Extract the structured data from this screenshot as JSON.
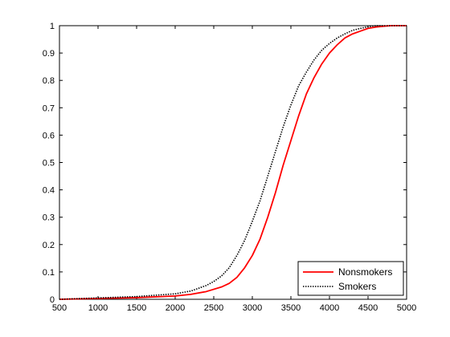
{
  "chart_data": {
    "type": "line",
    "title": "",
    "xlabel": "",
    "ylabel": "",
    "xlim": [
      500,
      5000
    ],
    "ylim": [
      0,
      1
    ],
    "x_ticks": [
      500,
      1000,
      1500,
      2000,
      2500,
      3000,
      3500,
      4000,
      4500,
      5000
    ],
    "y_ticks": [
      0,
      0.1,
      0.2,
      0.3,
      0.4,
      0.5,
      0.6,
      0.7,
      0.8,
      0.9,
      1
    ],
    "grid": false,
    "legend_position": "bottom-right",
    "series": [
      {
        "name": "Nonsmokers",
        "color": "#ff0000",
        "style": "solid",
        "x": [
          500,
          1000,
          1500,
          2000,
          2200,
          2400,
          2600,
          2700,
          2800,
          2900,
          3000,
          3100,
          3200,
          3300,
          3400,
          3500,
          3600,
          3700,
          3800,
          3900,
          4000,
          4100,
          4200,
          4300,
          4400,
          4500,
          4600,
          4700,
          4800,
          4900,
          5000
        ],
        "y": [
          0.0,
          0.003,
          0.006,
          0.012,
          0.018,
          0.028,
          0.045,
          0.058,
          0.08,
          0.115,
          0.16,
          0.22,
          0.3,
          0.39,
          0.49,
          0.58,
          0.67,
          0.75,
          0.81,
          0.86,
          0.9,
          0.93,
          0.955,
          0.97,
          0.98,
          0.99,
          0.995,
          0.998,
          1.0,
          1.0,
          1.0
        ]
      },
      {
        "name": "Smokers",
        "color": "#000000",
        "style": "dotted",
        "x": [
          500,
          1000,
          1500,
          2000,
          2200,
          2400,
          2500,
          2600,
          2700,
          2800,
          2900,
          3000,
          3100,
          3200,
          3300,
          3400,
          3500,
          3600,
          3700,
          3800,
          3900,
          4000,
          4100,
          4200,
          4300,
          4400,
          4500,
          4600,
          4700,
          4800,
          5000
        ],
        "y": [
          0.0,
          0.005,
          0.01,
          0.02,
          0.03,
          0.05,
          0.065,
          0.085,
          0.115,
          0.16,
          0.215,
          0.285,
          0.36,
          0.45,
          0.54,
          0.63,
          0.71,
          0.78,
          0.83,
          0.875,
          0.91,
          0.935,
          0.955,
          0.97,
          0.983,
          0.99,
          0.996,
          1.0,
          1.0,
          1.0,
          1.0
        ]
      }
    ]
  }
}
